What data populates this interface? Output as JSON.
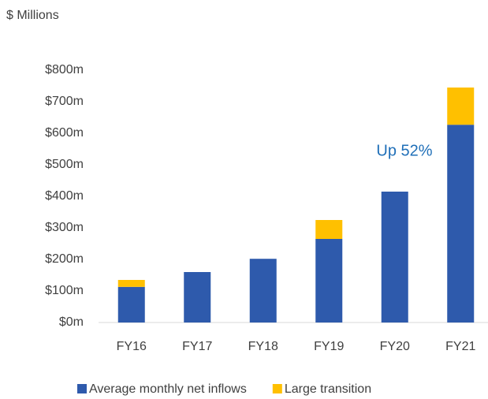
{
  "chart_data": {
    "type": "stacked_bar",
    "y_axis_title": "$ Millions",
    "categories": [
      "FY16",
      "FY17",
      "FY18",
      "FY19",
      "FY20",
      "FY21"
    ],
    "series": [
      {
        "name": "Average monthly net inflows",
        "color": "#2e5aac",
        "values": [
          113,
          160,
          202,
          265,
          415,
          627
        ]
      },
      {
        "name": "Large transition",
        "color": "#ffc000",
        "values": [
          22,
          null,
          null,
          60,
          null,
          118
        ]
      }
    ],
    "ylim": [
      0,
      800
    ],
    "yticks": [
      {
        "value": 0,
        "label": "$0m"
      },
      {
        "value": 100,
        "label": "$100m"
      },
      {
        "value": 200,
        "label": "$200m"
      },
      {
        "value": 300,
        "label": "$300m"
      },
      {
        "value": 400,
        "label": "$400m"
      },
      {
        "value": 500,
        "label": "$500m"
      },
      {
        "value": 600,
        "label": "$600m"
      },
      {
        "value": 700,
        "label": "$700m"
      },
      {
        "value": 800,
        "label": "$800m"
      }
    ],
    "annotation": "Up 52%",
    "annotation_color": "#1f6fb8"
  }
}
